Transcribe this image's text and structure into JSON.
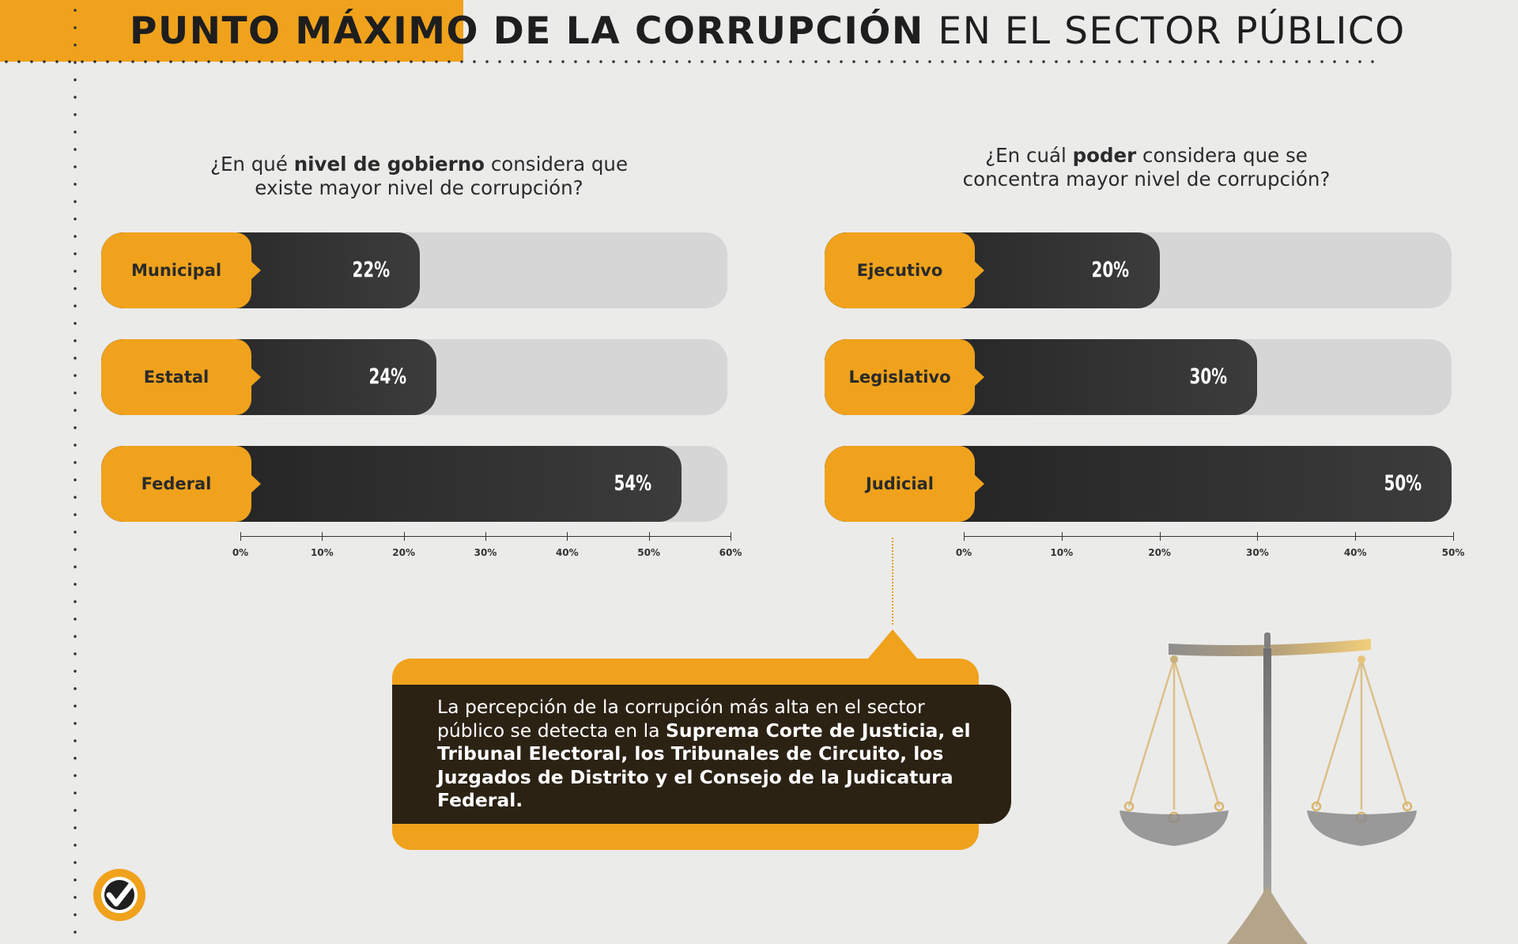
{
  "header": {
    "title_bold": "PUNTO MÁXIMO DE LA CORRUPCIÓN",
    "title_light": "EN EL SECTOR PÚBLICO"
  },
  "left": {
    "question": {
      "pre": "¿En qué ",
      "bold": "nivel de gobierno",
      "post_line1": " considera que",
      "line2": "existe mayor nivel de corrupción?"
    }
  },
  "right": {
    "question": {
      "pre": "¿En cuál ",
      "bold": "poder",
      "post_line1": " considera que se",
      "line2": "concentra mayor nivel de corrupción?"
    }
  },
  "chart_data": [
    {
      "type": "bar",
      "orientation": "horizontal",
      "categories": [
        "Municipal",
        "Estatal",
        "Federal"
      ],
      "values": [
        22,
        24,
        54
      ],
      "value_labels": [
        "22%",
        "24%",
        "54%"
      ],
      "xlim": [
        0,
        60
      ],
      "xticks": [
        "0%",
        "10%",
        "20%",
        "30%",
        "40%",
        "50%",
        "60%"
      ],
      "colors": {
        "label_bg": "#f0a21c",
        "fill": "#2f2f30",
        "track": "#d6d6d6"
      }
    },
    {
      "type": "bar",
      "orientation": "horizontal",
      "categories": [
        "Ejecutivo",
        "Legislativo",
        "Judicial"
      ],
      "values": [
        20,
        30,
        50
      ],
      "value_labels": [
        "20%",
        "30%",
        "50%"
      ],
      "xlim": [
        0,
        50
      ],
      "xticks": [
        "0%",
        "10%",
        "20%",
        "30%",
        "40%",
        "50%"
      ],
      "colors": {
        "label_bg": "#f0a21c",
        "fill": "#2f2f30",
        "track": "#d6d6d6"
      }
    }
  ],
  "note": {
    "intro": "La percepción de la corrupción más alta en el sector público se detecta en la ",
    "bold": "Suprema Corte de Justicia, el Tribunal Electoral, los Tribunales de Circuito, los Juzgados de Distrito y el Consejo de la Judicatura Federal."
  },
  "icons": {
    "scale": "scales-of-justice-icon",
    "logo": "checkmark-logo-icon"
  },
  "colors": {
    "accent": "#f0a21c",
    "dark": "#2c2214",
    "background": "#ebebea"
  }
}
